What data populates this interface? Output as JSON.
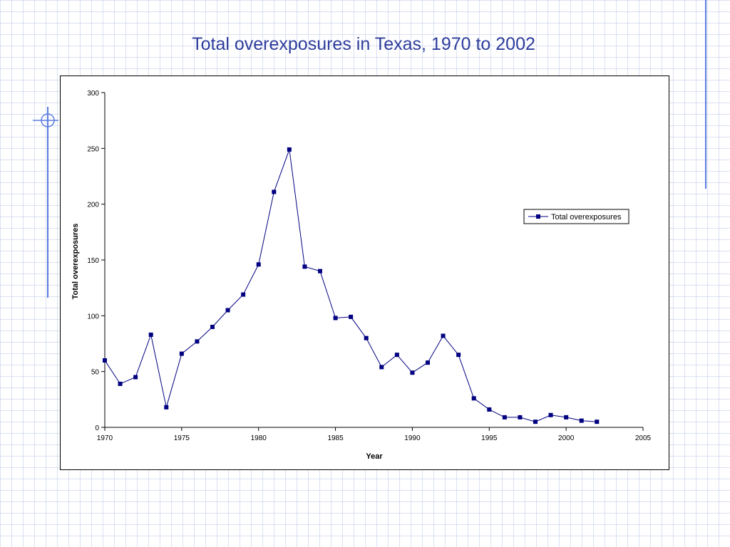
{
  "slide": {
    "title": "Total overexposures in Texas, 1970 to 2002"
  },
  "colors": {
    "title": "#2c3c9c",
    "series": "#000080",
    "grid_background": "#bec8e8",
    "decor": "#4a6ad8"
  },
  "chart_data": {
    "type": "line",
    "title": "",
    "xlabel": "Year",
    "ylabel": "Total overexposures",
    "xlim": [
      1970,
      2005
    ],
    "ylim": [
      0,
      300
    ],
    "xticks": [
      1970,
      1975,
      1980,
      1985,
      1990,
      1995,
      2000,
      2005
    ],
    "yticks": [
      0,
      50,
      100,
      150,
      200,
      250,
      300
    ],
    "grid": false,
    "legend": "right",
    "series": [
      {
        "name": "Total overexposures",
        "marker": "square",
        "x": [
          1970,
          1971,
          1972,
          1973,
          1974,
          1975,
          1976,
          1977,
          1978,
          1979,
          1980,
          1981,
          1982,
          1983,
          1984,
          1985,
          1986,
          1987,
          1988,
          1989,
          1990,
          1991,
          1992,
          1993,
          1994,
          1995,
          1996,
          1997,
          1998,
          1999,
          2000,
          2001,
          2002
        ],
        "y": [
          60,
          39,
          45,
          83,
          18,
          66,
          77,
          90,
          105,
          119,
          146,
          211,
          249,
          144,
          140,
          98,
          99,
          80,
          54,
          65,
          49,
          58,
          82,
          65,
          26,
          16,
          9,
          9,
          5,
          11,
          9,
          6,
          5
        ]
      }
    ]
  }
}
